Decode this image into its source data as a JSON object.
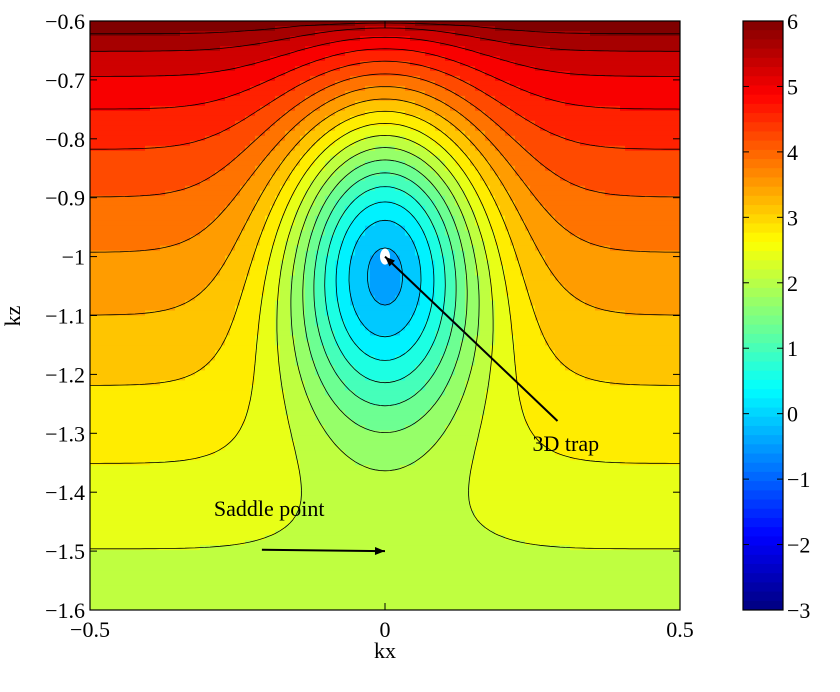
{
  "chart_data": {
    "type": "contour",
    "xlabel": "kx",
    "ylabel": "kz",
    "xlim": [
      -0.5,
      0.5
    ],
    "ylim": [
      -1.6,
      -0.6
    ],
    "x_ticks": [
      -0.5,
      0,
      0.5
    ],
    "x_tick_labels": [
      "−0.5",
      "0",
      "0.5"
    ],
    "y_ticks": [
      -0.6,
      -0.7,
      -0.8,
      -0.9,
      -1.0,
      -1.1,
      -1.2,
      -1.3,
      -1.4,
      -1.5,
      -1.6
    ],
    "y_tick_labels": [
      "−0.6",
      "−0.7",
      "−0.8",
      "−0.9",
      "−1",
      "−1.1",
      "−1.2",
      "−1.3",
      "−1.4",
      "−1.5",
      "−1.6"
    ],
    "colorbar": {
      "min": -3,
      "max": 6,
      "ticks": [
        6,
        5,
        4,
        3,
        2,
        1,
        0,
        -1,
        -2,
        -3
      ],
      "tick_labels": [
        "6",
        "5",
        "4",
        "3",
        "2",
        "1",
        "0",
        "−1",
        "−2",
        "−3"
      ],
      "colormap": "jet"
    },
    "annotations": [
      {
        "id": "saddle",
        "text": "Saddle point",
        "point": [
          0.0,
          -1.5
        ],
        "text_at": [
          -0.29,
          -1.44
        ]
      },
      {
        "id": "trap",
        "text": "3D trap",
        "point": [
          0.0,
          -1.0
        ],
        "text_at": [
          0.25,
          -1.33
        ]
      }
    ],
    "grid": false
  }
}
